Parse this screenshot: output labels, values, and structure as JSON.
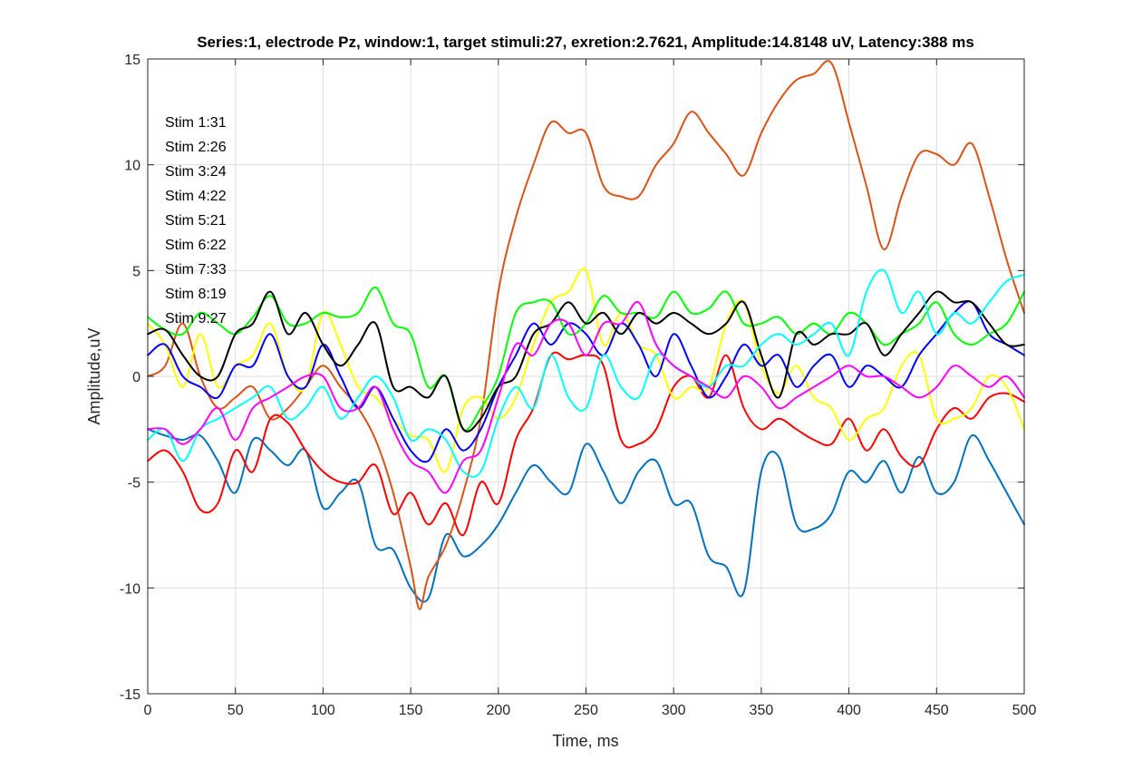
{
  "chart_data": {
    "type": "line",
    "title": "Series:1, electrode Pz, window:1, target stimuli:27, exretion:2.7621, Amplitude:14.8148 uV, Latency:388 ms",
    "xlabel": "Time, ms",
    "ylabel": "Amplitude,uV",
    "xlim": [
      0,
      500
    ],
    "ylim": [
      -15,
      15
    ],
    "xticks": [
      0,
      50,
      100,
      150,
      200,
      250,
      300,
      350,
      400,
      450,
      500
    ],
    "yticks": [
      -15,
      -10,
      -5,
      0,
      5,
      10,
      15
    ],
    "grid": true,
    "annotations": [
      "Stim 1:31",
      "Stim 2:26",
      "Stim 3:24",
      "Stim 4:22",
      "Stim 5:21",
      "Stim 6:22",
      "Stim 7:33",
      "Stim 8:19",
      "Stim 9:27"
    ],
    "series": [
      {
        "color": "#0072bd",
        "x": [
          0,
          10,
          20,
          30,
          40,
          50,
          60,
          70,
          80,
          90,
          100,
          110,
          120,
          130,
          140,
          150,
          160,
          170,
          180,
          190,
          200,
          210,
          220,
          230,
          240,
          250,
          260,
          270,
          280,
          290,
          300,
          310,
          320,
          330,
          340,
          350,
          360,
          370,
          380,
          390,
          400,
          410,
          420,
          430,
          440,
          450,
          460,
          470,
          480,
          490,
          500
        ],
        "y": [
          -2.5,
          -2.8,
          -3.0,
          -2.8,
          -4.0,
          -5.5,
          -3.0,
          -3.5,
          -4.2,
          -3.5,
          -6.2,
          -5.5,
          -5.0,
          -8.0,
          -8.2,
          -10.0,
          -10.5,
          -7.5,
          -8.5,
          -8.0,
          -7.0,
          -5.5,
          -4.2,
          -5.0,
          -5.5,
          -3.2,
          -4.5,
          -6.0,
          -4.5,
          -4.0,
          -6.0,
          -6.0,
          -8.5,
          -9.0,
          -10.2,
          -4.5,
          -3.8,
          -7.0,
          -7.2,
          -6.5,
          -4.5,
          -5.0,
          -4.0,
          -5.5,
          -3.8,
          -5.5,
          -5.0,
          -2.8,
          -4.0,
          -5.5,
          -7.0
        ]
      },
      {
        "color": "#d95319",
        "x": [
          0,
          10,
          20,
          30,
          40,
          50,
          60,
          70,
          80,
          90,
          100,
          110,
          120,
          130,
          140,
          150,
          155,
          160,
          170,
          180,
          190,
          200,
          210,
          220,
          230,
          240,
          250,
          260,
          270,
          280,
          290,
          300,
          310,
          320,
          330,
          340,
          350,
          360,
          370,
          380,
          390,
          400,
          410,
          420,
          430,
          440,
          450,
          460,
          470,
          480,
          490,
          500
        ],
        "y": [
          0,
          0.5,
          2.5,
          0,
          -1.5,
          -1.0,
          -0.5,
          -2.0,
          -1.5,
          -0.5,
          0.5,
          -0.5,
          -1.5,
          -3.0,
          -5.5,
          -9.0,
          -11.0,
          -9.5,
          -8.0,
          -5.5,
          -2.0,
          4.0,
          7.5,
          10.0,
          12.0,
          11.5,
          11.5,
          9.0,
          8.5,
          8.5,
          10.0,
          11.0,
          12.5,
          11.5,
          10.5,
          9.5,
          11.5,
          13.0,
          14.0,
          14.3,
          14.8,
          12.0,
          9.0,
          6.0,
          8.5,
          10.5,
          10.5,
          10.0,
          11.0,
          8.5,
          5.5,
          3.0
        ]
      },
      {
        "color": "#ff0000",
        "x": [
          0,
          10,
          20,
          30,
          40,
          50,
          60,
          70,
          80,
          90,
          100,
          110,
          120,
          130,
          140,
          150,
          160,
          170,
          180,
          190,
          200,
          210,
          220,
          230,
          240,
          250,
          260,
          270,
          280,
          290,
          300,
          310,
          320,
          330,
          340,
          350,
          360,
          370,
          380,
          390,
          400,
          410,
          420,
          430,
          440,
          450,
          460,
          470,
          480,
          490,
          500
        ],
        "y": [
          -4.0,
          -3.5,
          -4.5,
          -6.3,
          -6.0,
          -3.5,
          -4.5,
          -2.0,
          -2.2,
          -3.5,
          -4.5,
          -5.0,
          -5.0,
          -4.2,
          -6.5,
          -5.5,
          -7.0,
          -6.0,
          -7.5,
          -5.0,
          -6.0,
          -3.0,
          -1.5,
          1.0,
          0.8,
          1.0,
          0.5,
          -3.0,
          -3.2,
          -2.5,
          -0.5,
          0,
          -1.0,
          1.0,
          -1.5,
          -2.5,
          -2.0,
          -2.5,
          -3.0,
          -3.2,
          -2.0,
          -3.5,
          -2.5,
          -3.8,
          -4.2,
          -2.5,
          -1.5,
          -2.0,
          -1.0,
          -0.8,
          -1.2
        ]
      },
      {
        "color": "#ffff00",
        "x": [
          0,
          10,
          20,
          30,
          40,
          50,
          60,
          70,
          80,
          90,
          100,
          110,
          120,
          130,
          140,
          150,
          160,
          170,
          180,
          190,
          200,
          210,
          220,
          230,
          240,
          250,
          260,
          270,
          280,
          290,
          300,
          310,
          320,
          330,
          340,
          350,
          360,
          370,
          380,
          390,
          400,
          410,
          420,
          430,
          440,
          450,
          460,
          470,
          480,
          490,
          500
        ],
        "y": [
          2.5,
          1.5,
          -0.5,
          2.0,
          -0.5,
          0.5,
          1.0,
          2.5,
          0,
          -0.5,
          3.0,
          1.5,
          -0.5,
          -1.0,
          -2.0,
          -2.8,
          -3.0,
          -4.5,
          -1.5,
          -1.0,
          -2.0,
          -1.0,
          1.5,
          3.5,
          4.0,
          5.0,
          1.5,
          3.0,
          1.5,
          1.0,
          -1.0,
          -0.5,
          -0.5,
          2.5,
          3.5,
          0.5,
          -0.8,
          0.5,
          -1.0,
          -1.5,
          -3.0,
          -2.0,
          -1.5,
          0.5,
          1.0,
          -2.0,
          -2.0,
          -1.5,
          0,
          -0.5,
          -2.5
        ]
      },
      {
        "color": "#0000ff",
        "x": [
          0,
          10,
          20,
          30,
          40,
          50,
          60,
          70,
          80,
          90,
          100,
          110,
          120,
          130,
          140,
          150,
          160,
          170,
          180,
          190,
          200,
          210,
          220,
          230,
          240,
          250,
          260,
          270,
          280,
          290,
          300,
          310,
          320,
          330,
          340,
          350,
          360,
          370,
          380,
          390,
          400,
          410,
          420,
          430,
          440,
          450,
          460,
          470,
          480,
          490,
          500
        ],
        "y": [
          1.0,
          1.5,
          0,
          -0.5,
          -1.0,
          0.5,
          0.5,
          2.0,
          0,
          -0.5,
          1.5,
          0,
          -1.5,
          -0.5,
          -2.0,
          -3.5,
          -4.0,
          -2.5,
          -3.5,
          -2.5,
          -0.5,
          1.0,
          2.5,
          1.5,
          2.5,
          2.0,
          1.0,
          2.5,
          1.5,
          0,
          2.0,
          0.5,
          -1.0,
          0,
          1.5,
          0.5,
          1.0,
          -0.5,
          0.5,
          1.0,
          -0.5,
          0.5,
          0,
          -0.5,
          1.0,
          2.0,
          3.0,
          3.5,
          2.0,
          1.5,
          1.0
        ]
      },
      {
        "color": "#00ff00",
        "x": [
          0,
          10,
          20,
          30,
          40,
          50,
          60,
          70,
          80,
          90,
          100,
          110,
          120,
          130,
          140,
          150,
          160,
          170,
          180,
          190,
          200,
          210,
          220,
          230,
          240,
          250,
          260,
          270,
          280,
          290,
          300,
          310,
          320,
          330,
          340,
          350,
          360,
          370,
          380,
          390,
          400,
          410,
          420,
          430,
          440,
          450,
          460,
          470,
          480,
          490,
          500
        ],
        "y": [
          2.8,
          2.2,
          2.0,
          3.0,
          2.5,
          2.0,
          2.8,
          3.8,
          2.5,
          2.5,
          3.0,
          2.8,
          3.0,
          4.2,
          2.5,
          2.0,
          -0.5,
          0,
          -2.5,
          -1.5,
          0,
          3.0,
          3.5,
          3.5,
          2.0,
          2.5,
          3.8,
          3.0,
          3.0,
          2.8,
          4.0,
          3.0,
          3.2,
          4.0,
          2.5,
          2.5,
          2.8,
          2.0,
          2.5,
          2.0,
          3.0,
          2.5,
          1.5,
          2.0,
          2.5,
          3.5,
          2.0,
          1.5,
          2.0,
          2.5,
          4.0
        ]
      },
      {
        "color": "#000000",
        "x": [
          0,
          10,
          20,
          30,
          40,
          50,
          60,
          70,
          80,
          90,
          100,
          110,
          120,
          130,
          140,
          150,
          160,
          170,
          180,
          190,
          200,
          210,
          220,
          230,
          240,
          250,
          260,
          270,
          280,
          290,
          300,
          310,
          320,
          330,
          340,
          350,
          360,
          370,
          380,
          390,
          400,
          410,
          420,
          430,
          440,
          450,
          460,
          470,
          480,
          490,
          500
        ],
        "y": [
          2.0,
          2.2,
          1.0,
          0,
          0,
          2.0,
          2.5,
          4.0,
          2.0,
          3.0,
          1.5,
          0.5,
          1.5,
          2.5,
          -0.5,
          -0.5,
          -1.0,
          0,
          -2.5,
          -2.0,
          -0.5,
          0,
          2.0,
          2.5,
          3.5,
          2.5,
          3.0,
          2.0,
          3.0,
          2.5,
          3.0,
          2.5,
          2.0,
          2.5,
          3.5,
          1.0,
          -1.0,
          2.0,
          1.5,
          2.0,
          2.0,
          2.5,
          1.0,
          2.0,
          3.0,
          4.0,
          3.5,
          3.5,
          2.5,
          1.5,
          1.5
        ]
      },
      {
        "color": "#00ffff",
        "x": [
          0,
          10,
          20,
          30,
          40,
          50,
          60,
          70,
          80,
          90,
          100,
          110,
          120,
          130,
          140,
          150,
          160,
          170,
          180,
          190,
          200,
          210,
          220,
          230,
          240,
          250,
          260,
          270,
          280,
          290,
          300,
          310,
          320,
          330,
          340,
          350,
          360,
          370,
          380,
          390,
          400,
          410,
          420,
          430,
          440,
          450,
          460,
          470,
          480,
          490,
          500
        ],
        "y": [
          -3.0,
          -2.5,
          -4.0,
          -2.5,
          -2.0,
          -1.5,
          -1.0,
          -0.5,
          -2.0,
          -1.5,
          -0.5,
          -2.0,
          -1.0,
          0,
          -1.0,
          -3.0,
          -2.5,
          -3.0,
          -4.5,
          -4.5,
          -2.0,
          -0.5,
          -1.5,
          1.0,
          -1.0,
          -1.5,
          1.0,
          -0.5,
          -1.0,
          1.0,
          0.5,
          0,
          -0.5,
          0.5,
          0.5,
          1.5,
          2.0,
          1.5,
          2.0,
          2.5,
          1.0,
          4.0,
          5.0,
          3.0,
          4.0,
          2.0,
          3.0,
          2.5,
          3.5,
          4.5,
          4.8
        ]
      },
      {
        "color": "#ff00ff",
        "x": [
          0,
          10,
          20,
          30,
          40,
          50,
          60,
          70,
          80,
          90,
          100,
          110,
          120,
          130,
          140,
          150,
          160,
          170,
          180,
          190,
          200,
          210,
          220,
          230,
          240,
          250,
          260,
          270,
          280,
          290,
          300,
          310,
          320,
          330,
          340,
          350,
          360,
          370,
          380,
          390,
          400,
          410,
          420,
          430,
          440,
          450,
          460,
          470,
          480,
          490,
          500
        ],
        "y": [
          -2.5,
          -2.5,
          -3.2,
          -2.5,
          -1.5,
          -3.0,
          -1.5,
          -1.0,
          -0.5,
          0,
          0,
          -1.5,
          -1.5,
          -0.5,
          -2.5,
          -4.0,
          -4.5,
          -5.5,
          -4.0,
          -3.5,
          -1.0,
          1.5,
          1.0,
          2.5,
          2.5,
          1.0,
          2.5,
          2.5,
          3.5,
          1.5,
          0.5,
          0,
          -0.5,
          -1.0,
          0,
          -0.5,
          -1.5,
          -1.0,
          -0.5,
          0,
          0.5,
          0,
          0,
          -0.5,
          -1.0,
          -0.5,
          0.5,
          0,
          -0.5,
          0,
          -1.0
        ]
      }
    ]
  }
}
